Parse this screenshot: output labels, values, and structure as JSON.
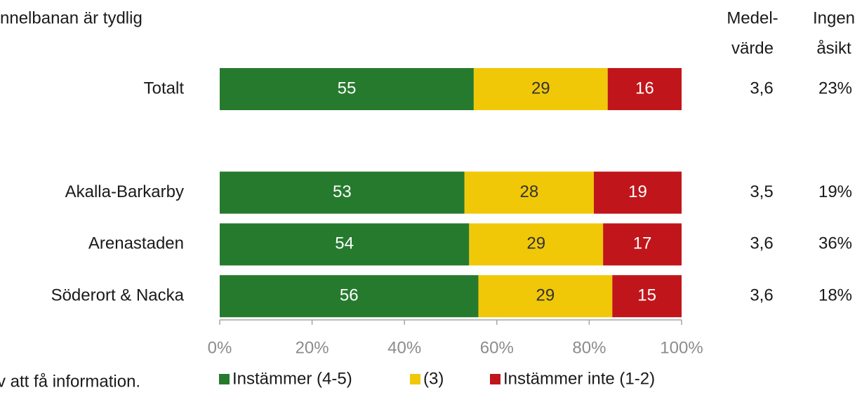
{
  "chart_data": {
    "type": "stacked-barh",
    "title": "nnelbanan är tydlig",
    "note": "v att få information.",
    "categories": [
      "Totalt",
      null,
      "Akalla-Barkarby",
      "Arenastaden",
      "Söderort & Nacka"
    ],
    "series": [
      {
        "name": "Instämmer (4-5)",
        "color": "#267a2e",
        "text_color": "#ffffff",
        "values": [
          55,
          null,
          53,
          54,
          56
        ]
      },
      {
        "name": "(3)",
        "color": "#f0c808",
        "text_color": "#333333",
        "values": [
          29,
          null,
          28,
          29,
          29
        ]
      },
      {
        "name": "Instämmer inte (1-2)",
        "color": "#c0161b",
        "text_color": "#ffffff",
        "values": [
          16,
          null,
          19,
          17,
          15
        ]
      }
    ],
    "columns": [
      {
        "header": [
          "Medel-",
          "värde"
        ],
        "values": [
          "3,6",
          null,
          "3,5",
          "3,6",
          "3,6"
        ]
      },
      {
        "header": [
          "Ingen",
          "åsikt"
        ],
        "values": [
          "23%",
          null,
          "19%",
          "36%",
          "18%"
        ]
      }
    ],
    "xlim": [
      0,
      100
    ],
    "xticks": [
      {
        "value": 0,
        "label": "0%"
      },
      {
        "value": 20,
        "label": "20%"
      },
      {
        "value": 40,
        "label": "40%"
      },
      {
        "value": 60,
        "label": "60%"
      },
      {
        "value": 80,
        "label": "80%"
      },
      {
        "value": 100,
        "label": "100%"
      }
    ],
    "legend": "bottom"
  }
}
